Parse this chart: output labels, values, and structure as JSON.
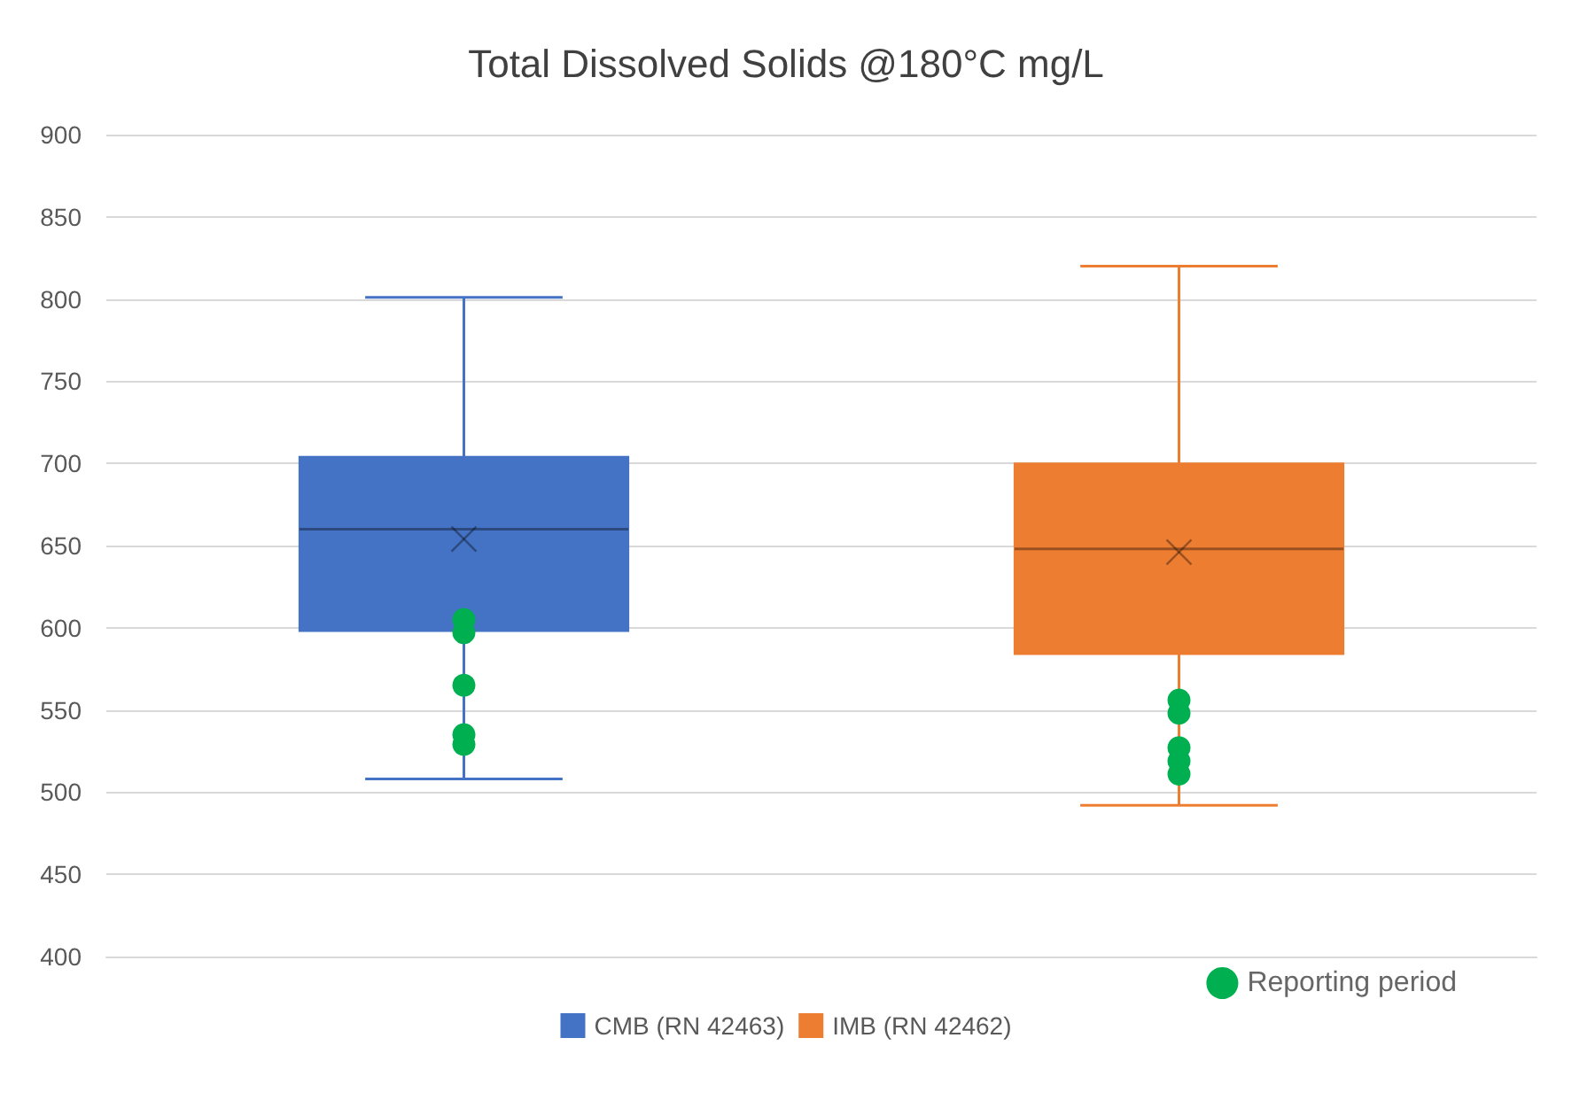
{
  "chart_data": {
    "type": "box",
    "title": "Total Dissolved Solids @180°C mg/L",
    "categories": [
      null,
      null
    ],
    "series": [
      {
        "name": "CMB (RN 42463)",
        "color": "#4472c4",
        "boxes": [
          {
            "low": 508,
            "q1": 598,
            "median": 660,
            "q3": 704,
            "high": 801,
            "mean": 654
          },
          null
        ]
      },
      {
        "name": "IMB (RN 42462)",
        "color": "#ed7d31",
        "boxes": [
          null,
          {
            "low": 492,
            "q1": 584,
            "median": 648,
            "q3": 700,
            "high": 820,
            "mean": 646
          }
        ]
      },
      {
        "name": "Reporting period",
        "type": "scatter",
        "color": "#00b050",
        "values": [
          605,
          556
        ]
      },
      {
        "type": "scatter",
        "color": "#00b050",
        "values": [
          597,
          548
        ]
      },
      {
        "type": "scatter",
        "color": "#00b050",
        "values": [
          565,
          527
        ]
      },
      {
        "type": "scatter",
        "color": "#00b050",
        "values": [
          535,
          519
        ]
      },
      {
        "type": "scatter",
        "color": "#00b050",
        "values": [
          529,
          511
        ]
      }
    ],
    "ylim": [
      400,
      900
    ],
    "yticks": [
      400,
      450,
      500,
      550,
      600,
      650,
      700,
      750,
      800,
      850,
      900
    ],
    "grid": "y",
    "legend": "bottom",
    "marker": "circle"
  }
}
